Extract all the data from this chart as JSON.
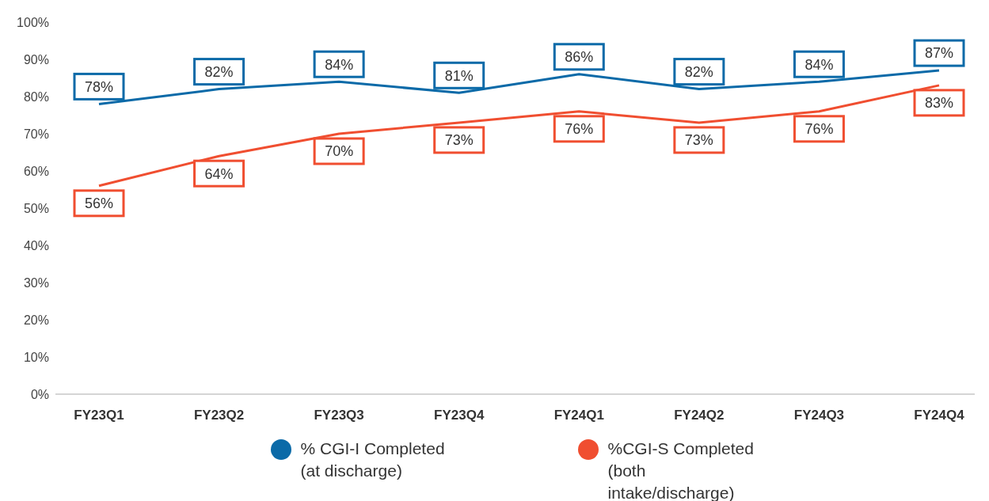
{
  "chart_data": {
    "type": "line",
    "categories": [
      "FY23Q1",
      "FY23Q2",
      "FY23Q3",
      "FY23Q4",
      "FY24Q1",
      "FY24Q2",
      "FY24Q3",
      "FY24Q4"
    ],
    "series": [
      {
        "name": "% CGI-I Completed (at discharge)",
        "color": "#0b6aa8",
        "values": [
          78,
          82,
          84,
          81,
          86,
          82,
          84,
          87
        ],
        "value_labels": [
          "78%",
          "82%",
          "84%",
          "81%",
          "86%",
          "82%",
          "84%",
          "87%"
        ]
      },
      {
        "name": "%CGI-S Completed (both intake/discharge)",
        "color": "#f04e30",
        "values": [
          56,
          64,
          70,
          73,
          76,
          73,
          76,
          83
        ],
        "value_labels": [
          "56%",
          "64%",
          "70%",
          "73%",
          "76%",
          "73%",
          "76%",
          "83%"
        ]
      }
    ],
    "ylim": [
      0,
      100
    ],
    "yticks": [
      {
        "value": 0,
        "label": "0%"
      },
      {
        "value": 10,
        "label": "10%"
      },
      {
        "value": 20,
        "label": "20%"
      },
      {
        "value": 30,
        "label": "30%"
      },
      {
        "value": 40,
        "label": "40%"
      },
      {
        "value": 50,
        "label": "50%"
      },
      {
        "value": 60,
        "label": "60%"
      },
      {
        "value": 70,
        "label": "70%"
      },
      {
        "value": 80,
        "label": "80%"
      },
      {
        "value": 90,
        "label": "90%"
      },
      {
        "value": 100,
        "label": "100%"
      }
    ],
    "grid": false,
    "legend": "bottom",
    "line_style": "solid"
  }
}
